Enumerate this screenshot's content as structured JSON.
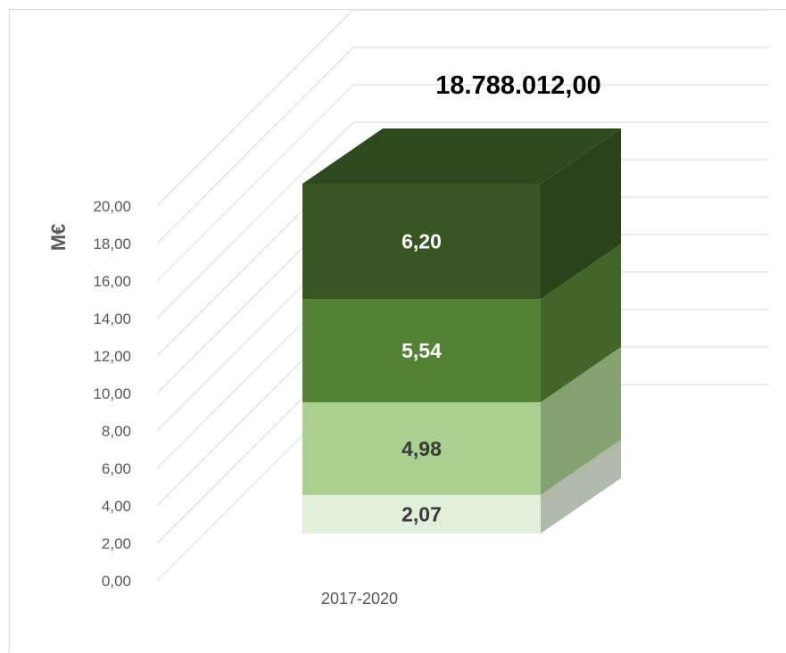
{
  "chart_data": {
    "type": "bar",
    "stacked": true,
    "three_d": true,
    "ylabel": "M€",
    "ylim": [
      0,
      20
    ],
    "grid": true,
    "categories": [
      "2017-2020"
    ],
    "yticks": [
      "0,00",
      "2,00",
      "4,00",
      "6,00",
      "8,00",
      "10,00",
      "12,00",
      "14,00",
      "16,00",
      "18,00",
      "20,00"
    ],
    "series": [
      {
        "values": [
          2.07
        ],
        "label": "2,07",
        "color": "#e2efda",
        "label_color": "#3a3a3a"
      },
      {
        "values": [
          4.98
        ],
        "label": "4,98",
        "color": "#a9d08e",
        "label_color": "#3a3a3a"
      },
      {
        "values": [
          5.54
        ],
        "label": "5,54",
        "color": "#548235",
        "label_color": "#ffffff"
      },
      {
        "values": [
          6.2
        ],
        "label": "6,20",
        "color": "#375623",
        "label_color": "#ffffff"
      }
    ],
    "total_label": "18.788.012,00"
  }
}
